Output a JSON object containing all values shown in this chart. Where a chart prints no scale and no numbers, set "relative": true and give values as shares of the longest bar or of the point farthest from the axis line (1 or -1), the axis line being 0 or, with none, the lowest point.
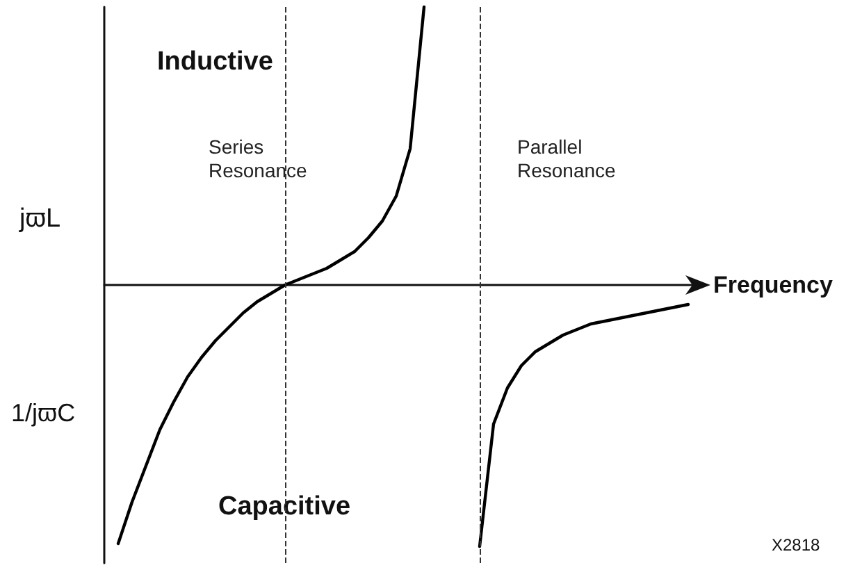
{
  "chart_data": {
    "type": "line",
    "relative": true,
    "xlabel": "Frequency",
    "tick_labels": false,
    "grid": false,
    "marker": "none",
    "line_style": "solid",
    "categories": [
      null,
      null,
      null,
      null,
      null,
      null,
      null,
      null,
      null,
      null,
      null,
      null,
      null,
      null,
      null,
      null,
      null,
      null,
      null,
      null,
      null,
      null,
      null,
      null,
      null,
      null,
      null,
      null,
      null,
      null,
      null,
      null,
      null,
      null,
      null,
      null,
      null,
      null,
      null,
      null,
      null,
      null,
      null,
      null
    ],
    "series": [
      {
        "color": "#000000",
        "values": [
          null,
          -0.93,
          -0.78,
          -0.65,
          -0.52,
          -0.42,
          -0.33,
          -0.26,
          -0.2,
          -0.15,
          -0.1,
          -0.06,
          -0.03,
          0,
          0.02,
          0.04,
          0.06,
          0.09,
          0.12,
          0.17,
          0.23,
          0.32,
          0.49,
          1,
          null,
          null,
          null,
          null,
          null,
          null,
          null,
          null,
          null,
          null,
          null,
          null,
          null,
          null,
          null,
          null,
          null,
          null,
          null,
          null
        ]
      },
      {
        "color": "#000000",
        "values": [
          null,
          null,
          null,
          null,
          null,
          null,
          null,
          null,
          null,
          null,
          null,
          null,
          null,
          null,
          null,
          null,
          null,
          null,
          null,
          null,
          null,
          null,
          null,
          null,
          null,
          null,
          null,
          -0.94,
          -0.5,
          -0.37,
          -0.29,
          -0.24,
          -0.21,
          -0.18,
          -0.16,
          -0.14,
          -0.13,
          -0.12,
          -0.11,
          -0.1,
          -0.09,
          -0.08,
          -0.07,
          null
        ]
      }
    ],
    "ref_lines": [
      {
        "axis": "x",
        "label": "Series Resonance",
        "line_style": "dashed"
      },
      {
        "axis": "x",
        "label": "Parallel Resonance",
        "line_style": "dashed"
      }
    ],
    "annotations": [
      "Inductive",
      "Capacitive",
      "jϖL",
      "1/jϖC",
      "X2818"
    ]
  }
}
